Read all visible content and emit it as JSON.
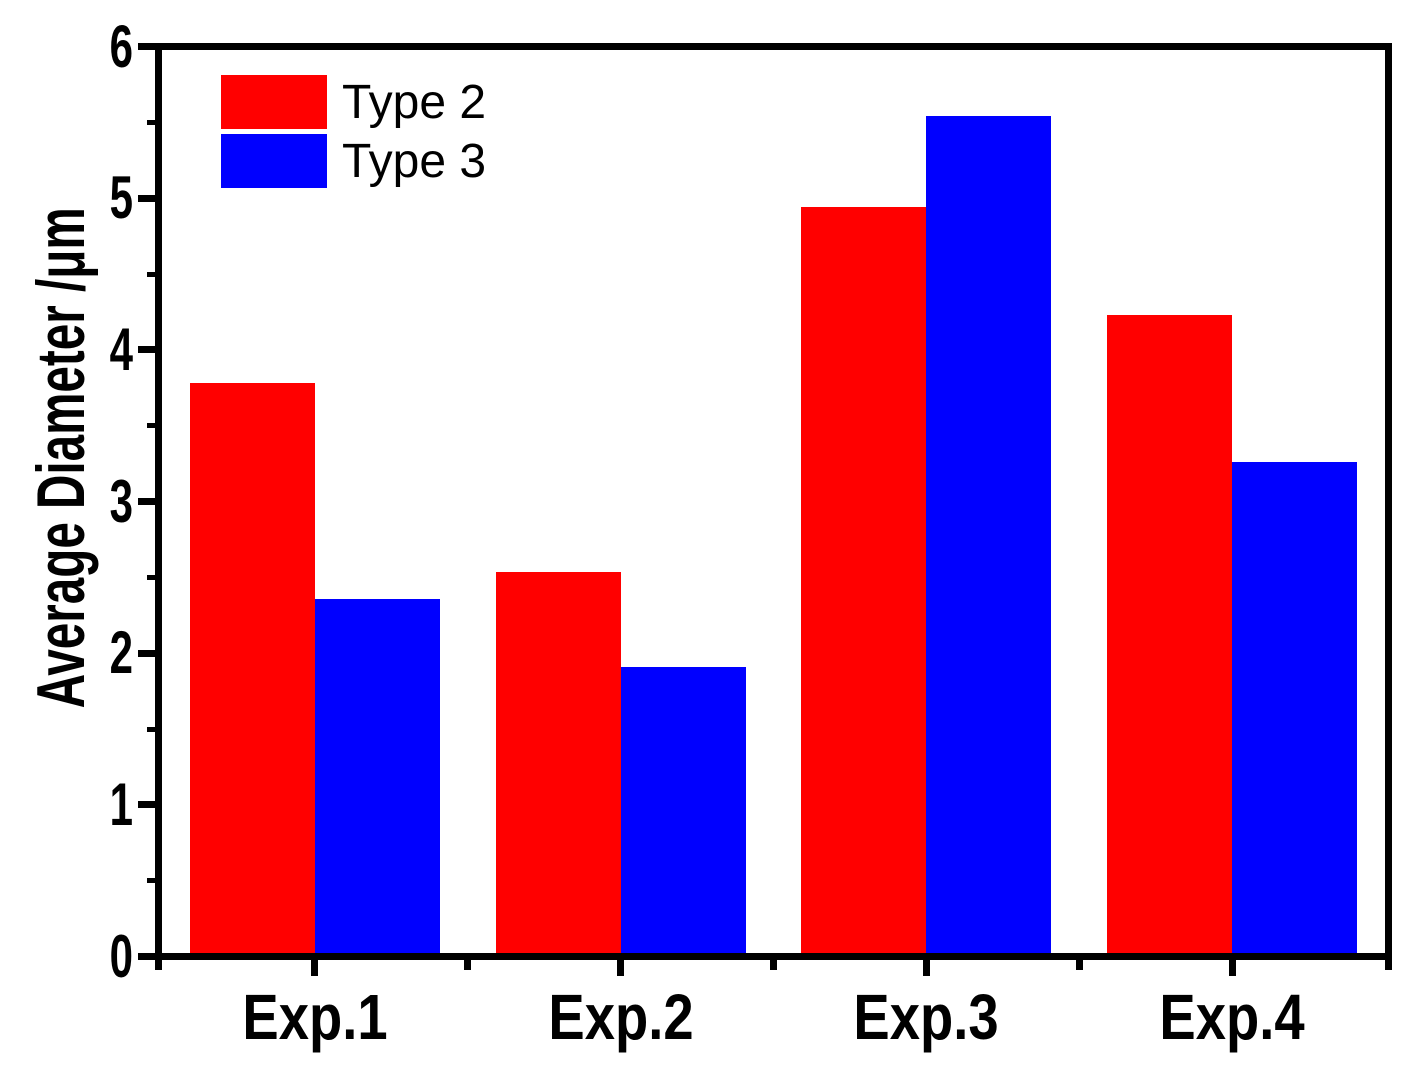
{
  "figure": {
    "background": "#ffffff",
    "axis_color": "#000000",
    "text_color": "#000000"
  },
  "chart_data": {
    "type": "bar",
    "categories": [
      "Exp.1",
      "Exp.2",
      "Exp.3",
      "Exp.4"
    ],
    "series": [
      {
        "name": "Type 2",
        "color": "#ff0000",
        "values": [
          3.79,
          2.53,
          4.96,
          4.24
        ]
      },
      {
        "name": "Type 3",
        "color": "#0000ff",
        "values": [
          2.35,
          1.9,
          5.56,
          3.26
        ]
      }
    ],
    "ylabel": "Average Diameter /μm",
    "xlabel": "",
    "title": "",
    "ylim": [
      0,
      6
    ],
    "yticks": [
      "0",
      "1",
      "2",
      "3",
      "4",
      "5",
      "6"
    ],
    "ytick_major_step": 1,
    "ytick_minor_step": 0.5,
    "xtick_minor_positions": "category-boundaries",
    "grid": false,
    "bar_outline": "none",
    "legend": {
      "position": "top-left-inside",
      "entries": [
        "Type 2",
        "Type 3"
      ]
    }
  }
}
